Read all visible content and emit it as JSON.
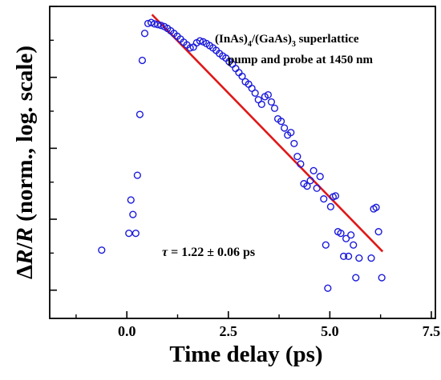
{
  "chart_data": {
    "type": "scatter",
    "title": "",
    "xlabel": "Time delay (ps)",
    "ylabel_parts": {
      "prefix": "Δ",
      "var1": "R",
      "slash": "/",
      "var2": "R",
      "rest": " (norm., log. scale)"
    },
    "xlim": [
      -1.9,
      7.6
    ],
    "ylim": [
      0.00012,
      3.0
    ],
    "y_scale": "log",
    "x_tick_values": [
      0.0,
      2.5,
      5.0,
      7.5
    ],
    "x_tick_labels": [
      "0.0",
      "2.5",
      "5.0",
      "7.5"
    ],
    "x_minor_ticks": [
      -1.25,
      1.25,
      3.75,
      6.25
    ],
    "y_major_ticks": [
      0.0003,
      0.003,
      0.03,
      0.3,
      3.0
    ],
    "y_minor_ticks": [
      0.001,
      0.01,
      0.1,
      1.0
    ],
    "grid": false,
    "legend": "none",
    "marker_color": "#1a1adb",
    "fit_color": "#e01818",
    "series": [
      {
        "kind": "points",
        "points": [
          {
            "x": -0.62,
            "y": 0.0011
          },
          {
            "x": 0.05,
            "y": 0.0019
          },
          {
            "x": 0.1,
            "y": 0.0056
          },
          {
            "x": 0.15,
            "y": 0.0035
          },
          {
            "x": 0.22,
            "y": 0.0019
          },
          {
            "x": 0.26,
            "y": 0.0125
          },
          {
            "x": 0.32,
            "y": 0.09
          },
          {
            "x": 0.38,
            "y": 0.52
          },
          {
            "x": 0.44,
            "y": 1.25
          },
          {
            "x": 0.52,
            "y": 1.72
          },
          {
            "x": 0.6,
            "y": 1.78
          },
          {
            "x": 0.68,
            "y": 1.7
          },
          {
            "x": 0.76,
            "y": 1.66
          },
          {
            "x": 0.84,
            "y": 1.62
          },
          {
            "x": 0.92,
            "y": 1.56
          },
          {
            "x": 1.0,
            "y": 1.47
          },
          {
            "x": 1.08,
            "y": 1.36
          },
          {
            "x": 1.16,
            "y": 1.25
          },
          {
            "x": 1.24,
            "y": 1.14
          },
          {
            "x": 1.32,
            "y": 1.04
          },
          {
            "x": 1.4,
            "y": 0.94
          },
          {
            "x": 1.48,
            "y": 0.86
          },
          {
            "x": 1.56,
            "y": 0.78
          },
          {
            "x": 1.64,
            "y": 0.8
          },
          {
            "x": 1.72,
            "y": 0.92
          },
          {
            "x": 1.8,
            "y": 0.98
          },
          {
            "x": 1.88,
            "y": 0.95
          },
          {
            "x": 1.96,
            "y": 0.9
          },
          {
            "x": 2.04,
            "y": 0.84
          },
          {
            "x": 2.12,
            "y": 0.78
          },
          {
            "x": 2.2,
            "y": 0.72
          },
          {
            "x": 2.28,
            "y": 0.65
          },
          {
            "x": 2.36,
            "y": 0.6
          },
          {
            "x": 2.44,
            "y": 0.56
          },
          {
            "x": 2.52,
            "y": 0.5
          },
          {
            "x": 2.6,
            "y": 0.46
          },
          {
            "x": 2.68,
            "y": 0.4
          },
          {
            "x": 2.76,
            "y": 0.35
          },
          {
            "x": 2.84,
            "y": 0.31
          },
          {
            "x": 2.92,
            "y": 0.26
          },
          {
            "x": 3.0,
            "y": 0.24
          },
          {
            "x": 3.08,
            "y": 0.21
          },
          {
            "x": 3.16,
            "y": 0.18
          },
          {
            "x": 3.24,
            "y": 0.145
          },
          {
            "x": 3.32,
            "y": 0.125
          },
          {
            "x": 3.4,
            "y": 0.16
          },
          {
            "x": 3.48,
            "y": 0.17
          },
          {
            "x": 3.56,
            "y": 0.135
          },
          {
            "x": 3.64,
            "y": 0.11
          },
          {
            "x": 3.72,
            "y": 0.078
          },
          {
            "x": 3.8,
            "y": 0.072
          },
          {
            "x": 3.88,
            "y": 0.058
          },
          {
            "x": 3.96,
            "y": 0.046
          },
          {
            "x": 4.04,
            "y": 0.05
          },
          {
            "x": 4.12,
            "y": 0.035
          },
          {
            "x": 4.2,
            "y": 0.023
          },
          {
            "x": 4.28,
            "y": 0.018
          },
          {
            "x": 4.36,
            "y": 0.0095
          },
          {
            "x": 4.44,
            "y": 0.0088
          },
          {
            "x": 4.52,
            "y": 0.0105
          },
          {
            "x": 4.6,
            "y": 0.0145
          },
          {
            "x": 4.68,
            "y": 0.0082
          },
          {
            "x": 4.76,
            "y": 0.012
          },
          {
            "x": 4.85,
            "y": 0.0058
          },
          {
            "x": 4.9,
            "y": 0.0013
          },
          {
            "x": 4.95,
            "y": 0.00032
          },
          {
            "x": 5.02,
            "y": 0.0045
          },
          {
            "x": 5.08,
            "y": 0.0062
          },
          {
            "x": 5.14,
            "y": 0.0064
          },
          {
            "x": 5.2,
            "y": 0.002
          },
          {
            "x": 5.27,
            "y": 0.0019
          },
          {
            "x": 5.34,
            "y": 0.0009
          },
          {
            "x": 5.4,
            "y": 0.0016
          },
          {
            "x": 5.46,
            "y": 0.0009
          },
          {
            "x": 5.52,
            "y": 0.0018
          },
          {
            "x": 5.58,
            "y": 0.0013
          },
          {
            "x": 5.64,
            "y": 0.00045
          },
          {
            "x": 5.72,
            "y": 0.00085
          },
          {
            "x": 6.02,
            "y": 0.00085
          },
          {
            "x": 6.08,
            "y": 0.0042
          },
          {
            "x": 6.14,
            "y": 0.0044
          },
          {
            "x": 6.2,
            "y": 0.002
          },
          {
            "x": 6.28,
            "y": 0.00045
          }
        ]
      },
      {
        "kind": "fit_line",
        "points": [
          {
            "x": 0.62,
            "y": 2.3
          },
          {
            "x": 6.3,
            "y": 0.00105
          }
        ]
      }
    ],
    "annotations": {
      "material": {
        "a": "(InAs)",
        "sub1": "4",
        "b": "/(GaAs)",
        "sub2": "3",
        "c": " superlattice"
      },
      "excitation": "pump and probe at 1450 nm",
      "tau": {
        "symbol": "τ",
        "rest": " = 1.22 ± 0.06 ps"
      }
    }
  }
}
